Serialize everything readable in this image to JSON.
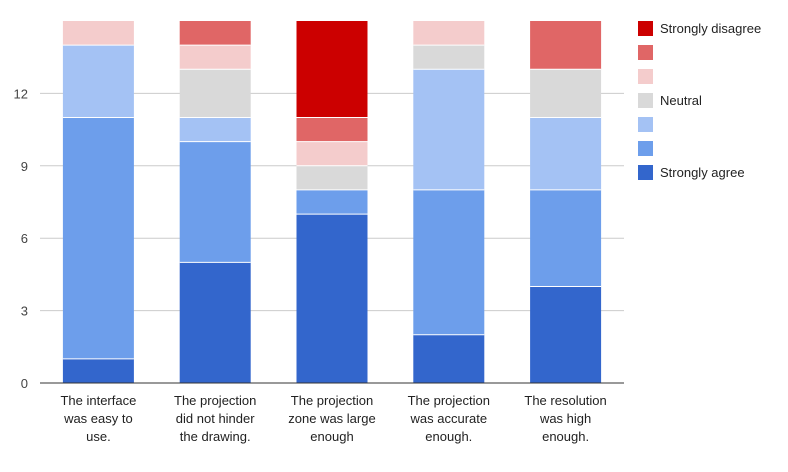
{
  "chart_data": {
    "type": "bar",
    "stacked": true,
    "categories": [
      [
        "The interface",
        "was easy to",
        "use."
      ],
      [
        "The projection",
        "did not hinder",
        "the drawing."
      ],
      [
        "The projection",
        "zone was large",
        "enough"
      ],
      [
        "The projection",
        "was accurate",
        "enough."
      ],
      [
        "The resolution",
        "was high",
        "enough."
      ]
    ],
    "series": [
      {
        "name": "Strongly agree",
        "color": "#3366cc",
        "values": [
          1,
          5,
          7,
          2,
          4
        ]
      },
      {
        "name": "",
        "color": "#6d9eeb",
        "values": [
          10,
          5,
          1,
          6,
          4
        ]
      },
      {
        "name": "",
        "color": "#a4c2f4",
        "values": [
          3,
          1,
          0,
          5,
          3
        ]
      },
      {
        "name": "Neutral",
        "color": "#d9d9d9",
        "values": [
          0,
          2,
          1,
          1,
          2
        ]
      },
      {
        "name": "",
        "color": "#f4cccc",
        "values": [
          1,
          1,
          1,
          1,
          0
        ]
      },
      {
        "name": "",
        "color": "#e06666",
        "values": [
          0,
          1,
          1,
          0,
          2
        ]
      },
      {
        "name": "Strongly disagree",
        "color": "#cc0000",
        "values": [
          0,
          0,
          4,
          0,
          0
        ]
      }
    ],
    "yticks": [
      0,
      3,
      6,
      9,
      12
    ],
    "ylim": [
      0,
      15
    ],
    "grid": true,
    "legend": "right"
  }
}
